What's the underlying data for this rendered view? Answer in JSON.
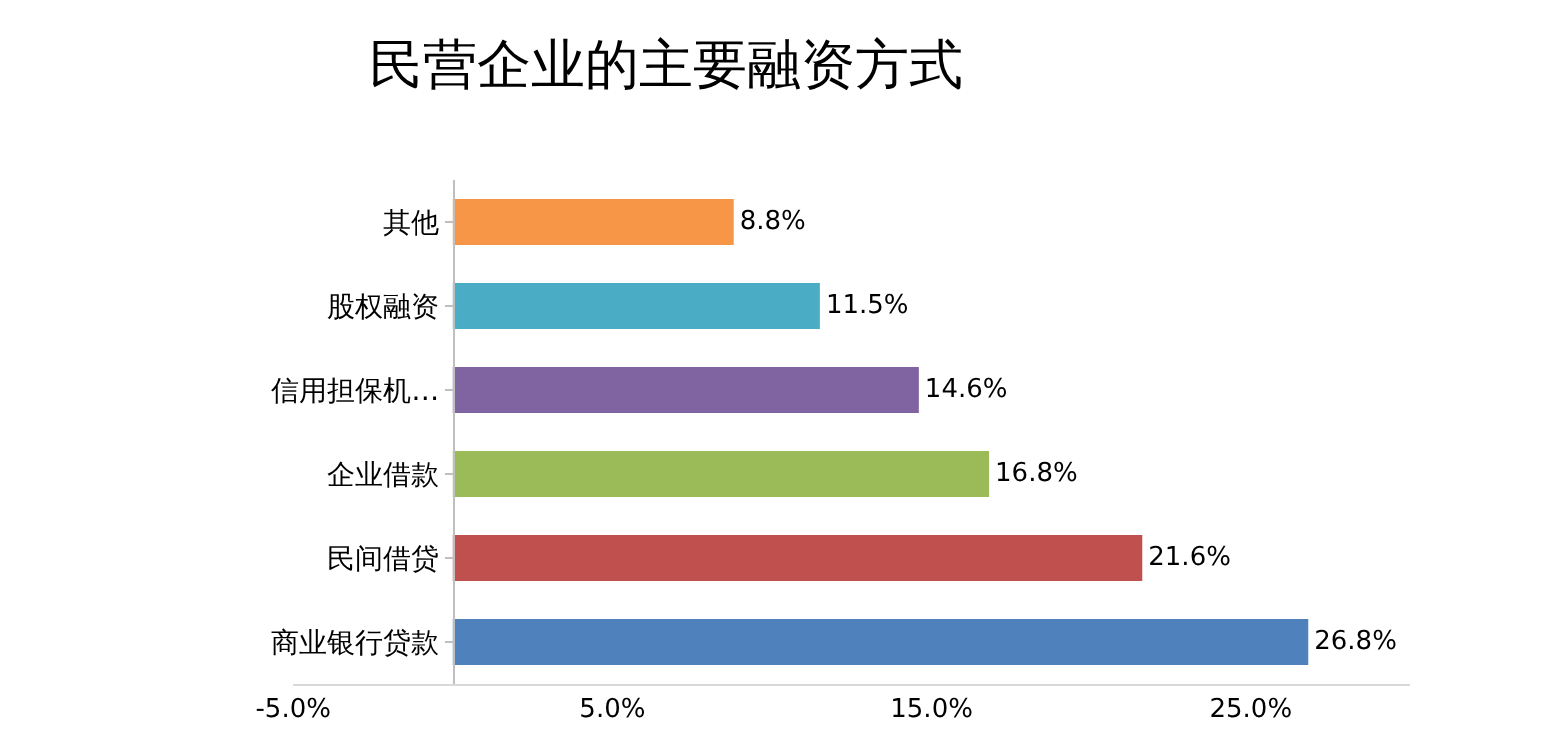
{
  "chart_data": {
    "type": "bar",
    "orientation": "horizontal",
    "title": "民营企业的主要融资方式",
    "categories": [
      "其他",
      "股权融资",
      "信用担保机…",
      "企业借款",
      "民间借贷",
      "商业银行贷款"
    ],
    "values": [
      8.8,
      11.5,
      14.6,
      16.8,
      21.6,
      26.8
    ],
    "colors": [
      "#f79646",
      "#4bacc6",
      "#8064a2",
      "#9bbb59",
      "#c0504d",
      "#4f81bd"
    ],
    "value_labels": [
      "8.8%",
      "11.5%",
      "14.6%",
      "16.8%",
      "21.6%",
      "26.8%"
    ],
    "xticks": [
      {
        "value": -5,
        "label": "-5.0%"
      },
      {
        "value": 5,
        "label": "5.0%"
      },
      {
        "value": 15,
        "label": "15.0%"
      },
      {
        "value": 25,
        "label": "25.0%"
      }
    ],
    "xlim": [
      -5,
      30
    ]
  }
}
